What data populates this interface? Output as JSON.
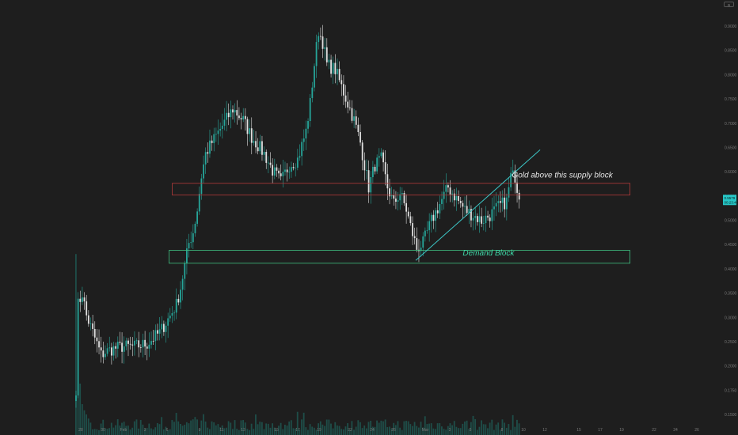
{
  "toolbar": {
    "scale_label": "",
    "scale_icon": "settings-icon"
  },
  "colors": {
    "background": "#1e1e1e",
    "bull": "#26a69a",
    "bear": "#e0e0e0",
    "volume": "#1f5f58",
    "supply_border": "#b33a3a",
    "demand_border": "#3fbf7f",
    "trendline": "#3cc6c6",
    "last_price_bg": "#26c6c6"
  },
  "chart_data": {
    "type": "candlestick",
    "title": "",
    "xlabel": "",
    "ylabel": "",
    "ylim": [
      0.165,
      0.915
    ],
    "grid": false,
    "x_tick_labels": [
      "28",
      "30",
      "Feb",
      "3",
      "6",
      "9",
      "11",
      "13",
      "15",
      "17",
      "19",
      "22",
      "24",
      "26",
      "Mar",
      "3",
      "5",
      "8",
      "10",
      "12",
      "15",
      "17",
      "19",
      "22",
      "24",
      "26"
    ],
    "y_tick_labels": [
      "0.9000",
      "0.8500",
      "0.8000",
      "0.7500",
      "0.7000",
      "0.6500",
      "0.6000",
      "0.5500",
      "0.5000",
      "0.4500",
      "0.4000",
      "0.3500",
      "0.3000",
      "0.2500",
      "0.2000",
      "0.1750",
      "0.1500"
    ],
    "last_price": "0.5579",
    "last_price_sub": "00:23:40",
    "candles": {
      "bar_count": 260,
      "anchors": [
        [
          0,
          0.22
        ],
        [
          1,
          0.37
        ],
        [
          3,
          0.39
        ],
        [
          5,
          0.35
        ],
        [
          7,
          0.33
        ],
        [
          10,
          0.3
        ],
        [
          12,
          0.28
        ],
        [
          14,
          0.285
        ],
        [
          17,
          0.29
        ],
        [
          22,
          0.295
        ],
        [
          28,
          0.295
        ],
        [
          34,
          0.3
        ],
        [
          40,
          0.32
        ],
        [
          45,
          0.35
        ],
        [
          48,
          0.37
        ],
        [
          50,
          0.4
        ],
        [
          52,
          0.44
        ],
        [
          54,
          0.48
        ],
        [
          56,
          0.5
        ],
        [
          58,
          0.54
        ],
        [
          60,
          0.6
        ],
        [
          62,
          0.64
        ],
        [
          65,
          0.66
        ],
        [
          70,
          0.69
        ],
        [
          75,
          0.72
        ],
        [
          80,
          0.7
        ],
        [
          84,
          0.67
        ],
        [
          90,
          0.64
        ],
        [
          94,
          0.61
        ],
        [
          98,
          0.59
        ],
        [
          102,
          0.62
        ],
        [
          106,
          0.63
        ],
        [
          110,
          0.68
        ],
        [
          112,
          0.73
        ],
        [
          114,
          0.8
        ],
        [
          116,
          0.86
        ],
        [
          118,
          0.84
        ],
        [
          120,
          0.8
        ],
        [
          124,
          0.79
        ],
        [
          128,
          0.75
        ],
        [
          130,
          0.73
        ],
        [
          133,
          0.7
        ],
        [
          136,
          0.66
        ],
        [
          138,
          0.62
        ],
        [
          140,
          0.58
        ],
        [
          143,
          0.62
        ],
        [
          146,
          0.63
        ],
        [
          149,
          0.58
        ],
        [
          152,
          0.55
        ],
        [
          155,
          0.57
        ],
        [
          158,
          0.54
        ],
        [
          160,
          0.51
        ],
        [
          163,
          0.47
        ],
        [
          166,
          0.48
        ],
        [
          170,
          0.52
        ],
        [
          174,
          0.55
        ],
        [
          178,
          0.58
        ],
        [
          182,
          0.56
        ],
        [
          186,
          0.54
        ],
        [
          190,
          0.53
        ],
        [
          194,
          0.52
        ],
        [
          198,
          0.53
        ],
        [
          202,
          0.545
        ],
        [
          206,
          0.555
        ],
        [
          208,
          0.6
        ],
        [
          210,
          0.6
        ],
        [
          212,
          0.558
        ]
      ],
      "volume_levels": [
        0.88,
        0.45,
        0.25,
        0.15,
        0.12,
        0.1,
        0.08,
        0.06
      ]
    },
    "zones": [
      {
        "name": "supply",
        "label": "Gold above this supply block",
        "y_low": 0.566,
        "y_high": 0.587
      },
      {
        "name": "demand",
        "label": "Demand Block",
        "y_low": 0.444,
        "y_high": 0.467
      }
    ],
    "trendline": {
      "from": [
        162.5,
        0.449
      ],
      "to": [
        222,
        0.647
      ]
    },
    "annotations": [
      {
        "text": "Gold above this supply block",
        "x": 208.5,
        "y": 0.597
      },
      {
        "text": "Demand Block",
        "x": 185,
        "y": 0.458
      }
    ]
  }
}
